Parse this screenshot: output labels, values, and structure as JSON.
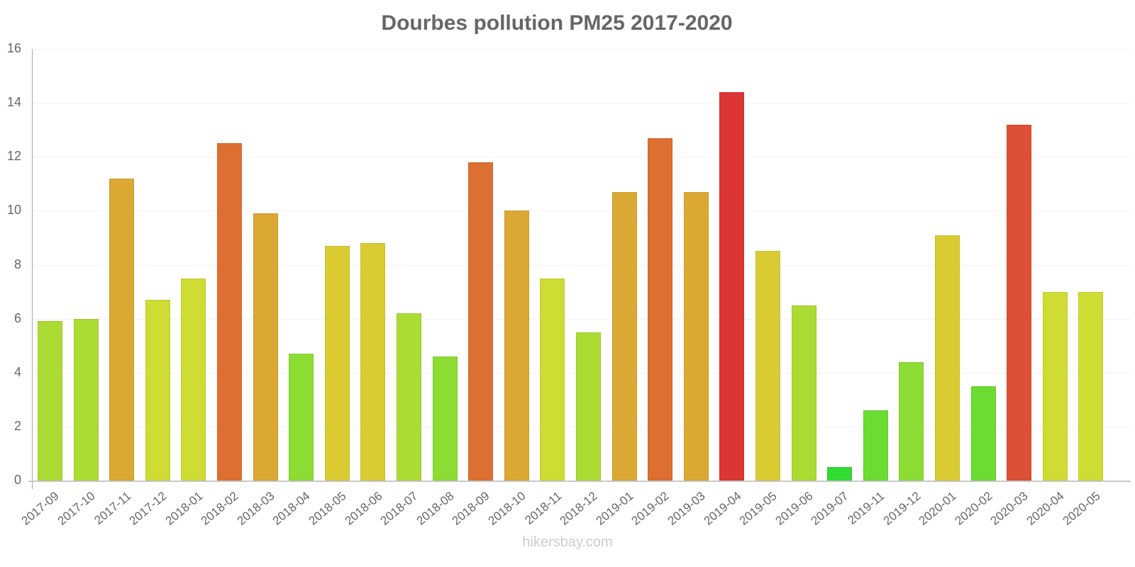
{
  "chart_data": {
    "type": "bar",
    "title": "Dourbes pollution PM25 2017-2020",
    "xlabel": "",
    "ylabel": "",
    "ylim": [
      0,
      16
    ],
    "yticks": [
      0,
      2,
      4,
      6,
      8,
      10,
      12,
      14,
      16
    ],
    "grid": true,
    "legend": null,
    "categories": [
      "2017-09",
      "2017-10",
      "2017-11",
      "2017-12",
      "2018-01",
      "2018-02",
      "2018-03",
      "2018-04",
      "2018-05",
      "2018-06",
      "2018-07",
      "2018-08",
      "2018-09",
      "2018-10",
      "2018-11",
      "2018-12",
      "2019-01",
      "2019-02",
      "2019-03",
      "2019-04",
      "2019-05",
      "2019-06",
      "2019-07",
      "2019-11",
      "2019-12",
      "2020-01",
      "2020-02",
      "2020-03",
      "2020-04",
      "2020-05"
    ],
    "values": [
      5.9,
      6.0,
      11.2,
      6.7,
      7.5,
      12.5,
      9.9,
      4.7,
      8.7,
      8.8,
      6.2,
      4.6,
      11.8,
      10.0,
      7.5,
      5.5,
      10.7,
      12.7,
      10.7,
      14.4,
      8.5,
      6.5,
      0.5,
      2.6,
      4.4,
      9.1,
      3.5,
      13.2,
      7.0,
      7.0
    ],
    "colors": [
      "#acdb33",
      "#acdb33",
      "#dba833",
      "#cfdc33",
      "#cfdc33",
      "#dd6f33",
      "#dba833",
      "#8ddc33",
      "#dbcb33",
      "#dbcb33",
      "#acdb33",
      "#8ddc33",
      "#dd6f33",
      "#dba833",
      "#cfdc33",
      "#acdb33",
      "#dba833",
      "#dd6f33",
      "#dba833",
      "#dc3535",
      "#dbcb33",
      "#acdb33",
      "#33dc33",
      "#6cdc33",
      "#8ddc33",
      "#dbcb33",
      "#6cdc33",
      "#dd5035",
      "#cfdc33",
      "#cfdc33"
    ]
  },
  "watermark": "hikersbay.com"
}
